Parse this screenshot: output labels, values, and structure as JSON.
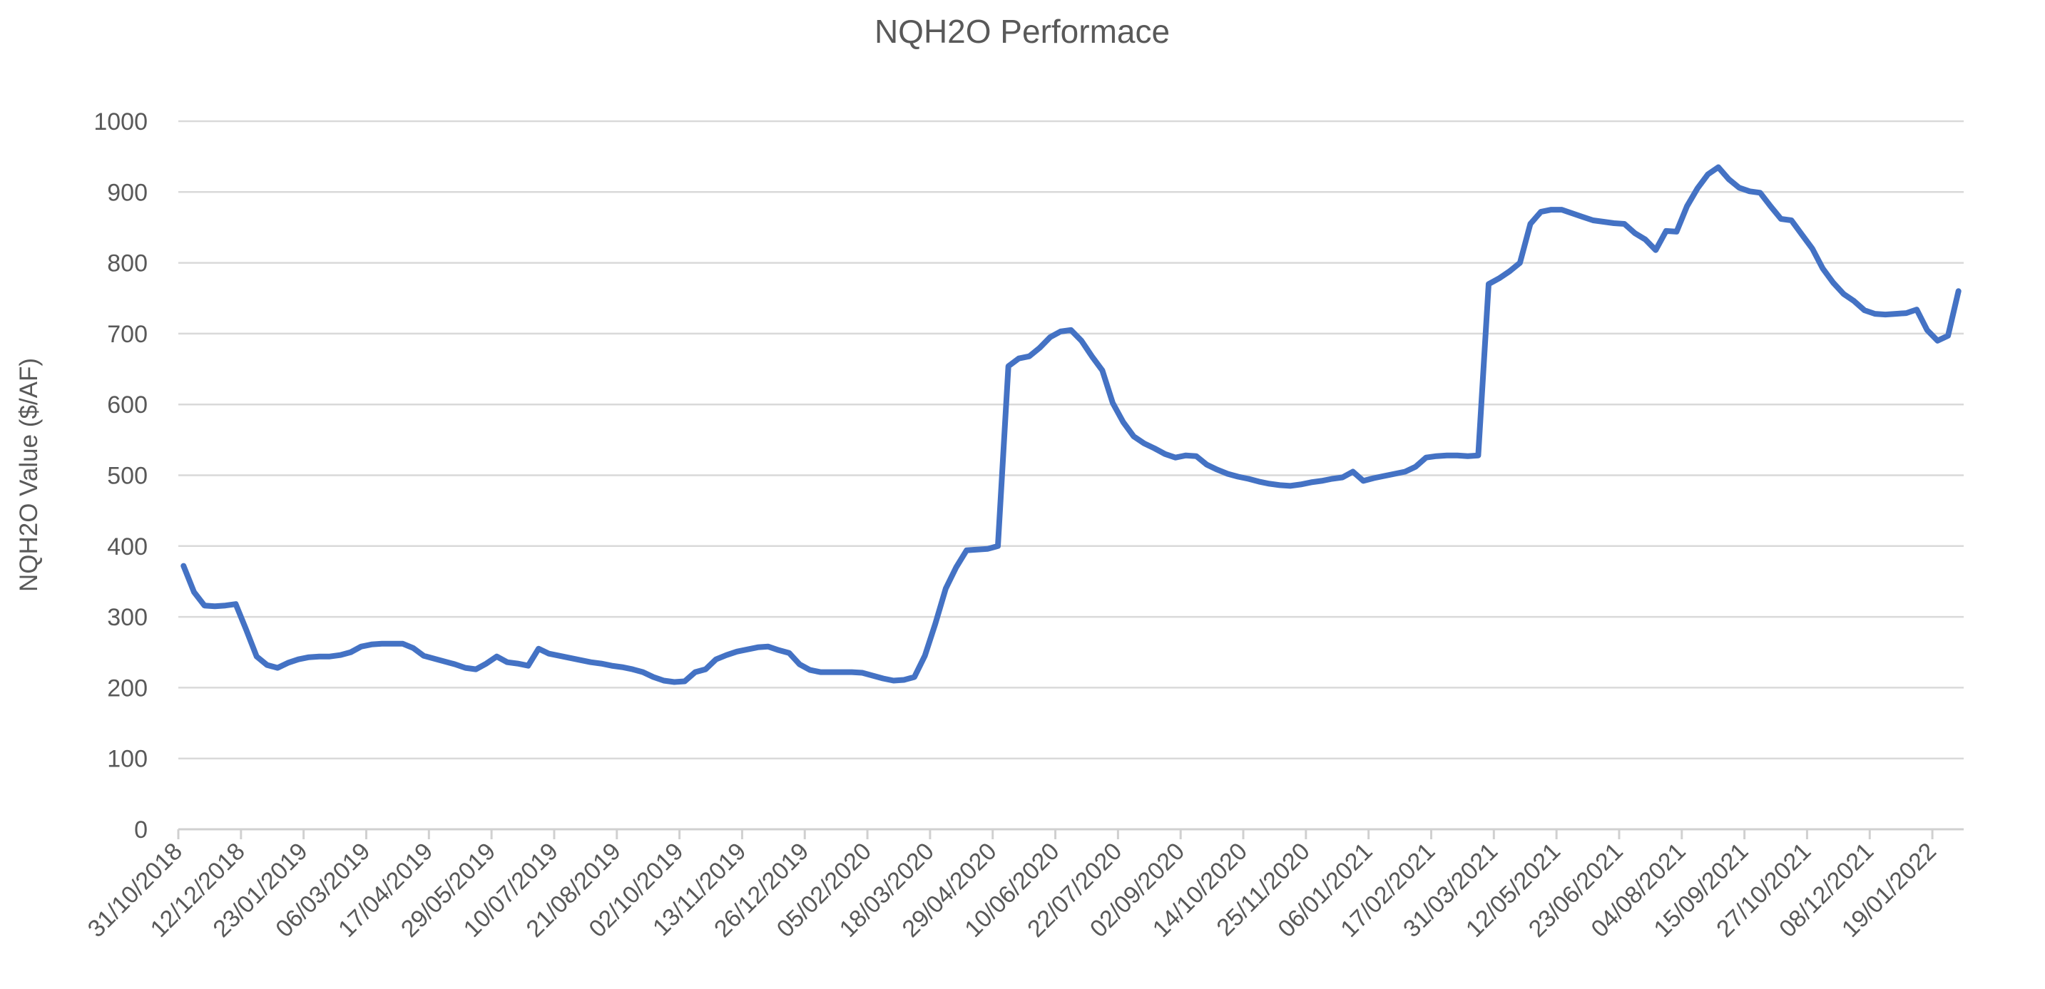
{
  "chart": {
    "title": "NQH2O Performace",
    "y_axis_title": "NQH2O Value ($/AF)",
    "colors": {
      "line": "#4472C4",
      "gridline": "#D9D9D9",
      "axis_line": "#D0D0D0",
      "text": "#595959",
      "background": "#FFFFFF"
    }
  },
  "chart_data": {
    "type": "line",
    "title": "NQH2O Performace",
    "xlabel": "",
    "ylabel": "NQH2O Value ($/AF)",
    "ylim": [
      0,
      1000
    ],
    "y_ticks": [
      0,
      100,
      200,
      300,
      400,
      500,
      600,
      700,
      800,
      900,
      1000
    ],
    "grid": "horizontal",
    "legend": "none",
    "frequency": "weekly",
    "x_tick_labels": [
      "31/10/2018",
      "12/12/2018",
      "23/01/2019",
      "06/03/2019",
      "17/04/2019",
      "29/05/2019",
      "10/07/2019",
      "21/08/2019",
      "02/10/2019",
      "13/11/2019",
      "26/12/2019",
      "05/02/2020",
      "18/03/2020",
      "29/04/2020",
      "10/06/2020",
      "22/07/2020",
      "02/09/2020",
      "14/10/2020",
      "25/11/2020",
      "06/01/2021",
      "17/02/2021",
      "31/03/2021",
      "12/05/2021",
      "23/06/2021",
      "04/08/2021",
      "15/09/2021",
      "27/10/2021",
      "08/12/2021",
      "19/01/2022"
    ],
    "points_per_label_interval": 6,
    "values": [
      372,
      335,
      316,
      315,
      316,
      318,
      282,
      244,
      232,
      228,
      235,
      240,
      243,
      244,
      244,
      246,
      250,
      258,
      261,
      262,
      262,
      262,
      256,
      245,
      241,
      237,
      233,
      228,
      226,
      234,
      244,
      236,
      234,
      231,
      255,
      248,
      245,
      242,
      239,
      236,
      234,
      231,
      229,
      226,
      222,
      215,
      210,
      208,
      209,
      222,
      226,
      240,
      246,
      251,
      254,
      257,
      258,
      253,
      249,
      233,
      225,
      222,
      222,
      222,
      222,
      221,
      217,
      213,
      210,
      211,
      215,
      245,
      290,
      340,
      370,
      394,
      395,
      396,
      400,
      654,
      665,
      668,
      680,
      695,
      703,
      705,
      690,
      668,
      648,
      602,
      575,
      555,
      545,
      538,
      530,
      525,
      528,
      527,
      515,
      508,
      502,
      498,
      495,
      491,
      488,
      486,
      485,
      487,
      490,
      492,
      495,
      497,
      505,
      492,
      496,
      499,
      502,
      505,
      512,
      525,
      527,
      528,
      528,
      527,
      528,
      770,
      778,
      788,
      800,
      855,
      872,
      875,
      875,
      870,
      865,
      860,
      858,
      856,
      855,
      842,
      833,
      818,
      845,
      844,
      880,
      905,
      925,
      935,
      918,
      906,
      901,
      899,
      880,
      862,
      860,
      840,
      820,
      792,
      772,
      756,
      746,
      733,
      728,
      727,
      728,
      729,
      734,
      705,
      690,
      697,
      760
    ]
  }
}
